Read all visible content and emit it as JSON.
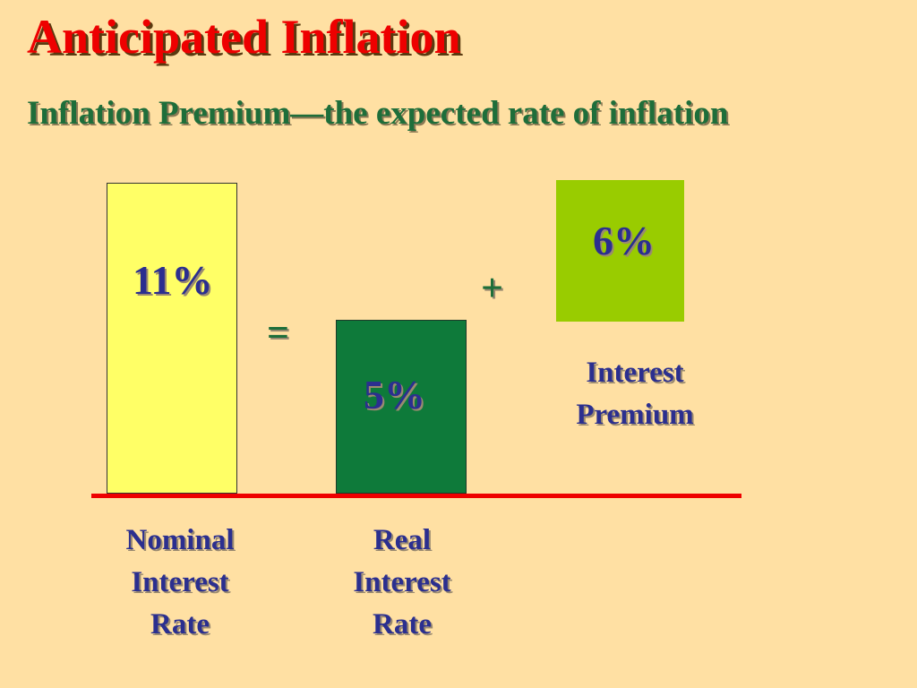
{
  "title": "Anticipated Inflation",
  "subtitle": "Inflation Premium—the expected rate of inflation",
  "bars": {
    "nominal": {
      "value": "11%",
      "label": [
        "Nominal",
        "Interest",
        "Rate"
      ]
    },
    "real": {
      "value": "5%",
      "label": [
        "Real",
        "Interest",
        "Rate"
      ]
    },
    "premium": {
      "value": "6%",
      "label": [
        "Interest",
        "Premium"
      ]
    }
  },
  "operators": {
    "equals": "=",
    "plus": "+"
  },
  "colors": {
    "background": "#FFE0A3",
    "title": "#EE0000",
    "subtitle": "#1E6E3A",
    "value_text": "#2B2F8F",
    "operator": "#1E6E3A",
    "nominal_fill": "#FFFF66",
    "real_fill": "#0E7A3A",
    "premium_fill": "#99CC00",
    "baseline": "#EE0000"
  }
}
